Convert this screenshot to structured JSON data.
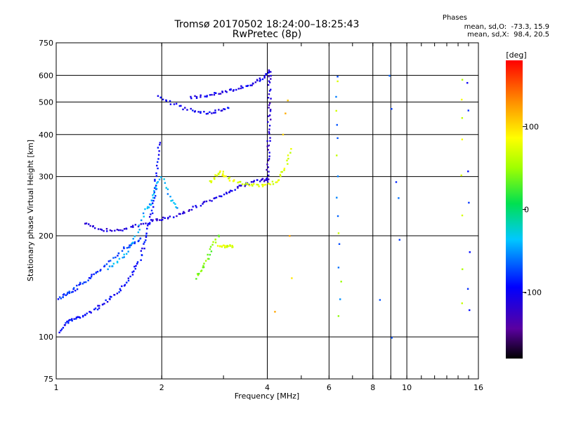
{
  "chart_data": {
    "type": "scatter",
    "title": "Tromsø 20170502 18:24:00–18:25:43",
    "subtitle": "RwPretec (8p)",
    "xlabel": "Frequency [MHz]",
    "ylabel": "Stationary phase Virtual Height [km]",
    "x_scale": "log",
    "y_scale": "log",
    "xlim": [
      1,
      16
    ],
    "ylim": [
      75,
      750
    ],
    "xticks": [
      1,
      2,
      4,
      6,
      8,
      10,
      16
    ],
    "yticks": [
      75,
      100,
      200,
      300,
      400,
      500,
      600,
      750
    ],
    "grid": true,
    "stats": {
      "heading": "Phases",
      "line1": "mean, sd,O:  -73.3, 15.9",
      "line2": "mean, sd,X:  98.4, 20.5"
    },
    "colorbar": {
      "label": "[deg]",
      "ticks": [
        100,
        0,
        -100
      ],
      "range": [
        -180,
        180
      ],
      "colormap": "rainbow"
    },
    "series": [
      {
        "color_deg": -95,
        "points": [
          [
            1.03,
            104
          ],
          [
            1.06,
            110
          ],
          [
            1.1,
            112
          ],
          [
            1.15,
            114
          ],
          [
            1.2,
            116
          ],
          [
            1.28,
            120
          ],
          [
            1.35,
            125
          ],
          [
            1.42,
            130
          ],
          [
            1.5,
            137
          ],
          [
            1.58,
            145
          ],
          [
            1.65,
            155
          ],
          [
            1.72,
            168
          ],
          [
            1.78,
            185
          ],
          [
            1.82,
            205
          ],
          [
            1.86,
            230
          ],
          [
            1.9,
            260
          ],
          [
            1.92,
            290
          ],
          [
            1.94,
            330
          ],
          [
            1.96,
            380
          ]
        ]
      },
      {
        "color_deg": -80,
        "points": [
          [
            1.02,
            130
          ],
          [
            1.05,
            133
          ],
          [
            1.09,
            136
          ],
          [
            1.14,
            140
          ],
          [
            1.2,
            146
          ],
          [
            1.27,
            152
          ],
          [
            1.35,
            160
          ],
          [
            1.45,
            172
          ],
          [
            1.55,
            182
          ],
          [
            1.65,
            190
          ],
          [
            1.75,
            196
          ]
        ]
      },
      {
        "color_deg": -110,
        "points": [
          [
            1.2,
            218
          ],
          [
            1.28,
            212
          ],
          [
            1.38,
            208
          ],
          [
            1.5,
            208
          ],
          [
            1.62,
            212
          ],
          [
            1.75,
            216
          ],
          [
            1.9,
            222
          ],
          [
            2.0,
            225
          ],
          [
            2.15,
            228
          ],
          [
            2.3,
            234
          ],
          [
            2.5,
            244
          ],
          [
            2.7,
            252
          ],
          [
            2.9,
            262
          ],
          [
            3.1,
            270
          ],
          [
            3.3,
            279
          ],
          [
            3.5,
            285
          ],
          [
            3.7,
            290
          ],
          [
            3.9,
            293
          ],
          [
            4.0,
            295
          ]
        ]
      },
      {
        "color_deg": -115,
        "points": [
          [
            4.0,
            290
          ],
          [
            4.02,
            320
          ],
          [
            4.03,
            360
          ],
          [
            4.04,
            400
          ],
          [
            4.05,
            450
          ],
          [
            4.06,
            500
          ],
          [
            4.06,
            560
          ],
          [
            4.06,
            610
          ]
        ]
      },
      {
        "color_deg": -105,
        "points": [
          [
            2.4,
            515
          ],
          [
            2.6,
            520
          ],
          [
            2.8,
            528
          ],
          [
            3.0,
            535
          ],
          [
            3.2,
            545
          ],
          [
            3.4,
            555
          ],
          [
            3.6,
            565
          ],
          [
            3.8,
            580
          ],
          [
            3.95,
            600
          ],
          [
            4.05,
            620
          ]
        ]
      },
      {
        "color_deg": -100,
        "points": [
          [
            1.95,
            520
          ],
          [
            2.1,
            500
          ],
          [
            2.3,
            480
          ],
          [
            2.5,
            470
          ],
          [
            2.7,
            465
          ],
          [
            2.9,
            470
          ],
          [
            3.1,
            480
          ]
        ]
      },
      {
        "color_deg": 40,
        "points": [
          [
            2.5,
            150
          ],
          [
            2.6,
            160
          ],
          [
            2.7,
            172
          ],
          [
            2.8,
            188
          ],
          [
            2.9,
            200
          ]
        ]
      },
      {
        "color_deg": 75,
        "points": [
          [
            2.75,
            290
          ],
          [
            2.85,
            300
          ],
          [
            2.95,
            310
          ],
          [
            3.05,
            300
          ],
          [
            3.2,
            292
          ],
          [
            3.4,
            286
          ],
          [
            3.6,
            283
          ],
          [
            3.85,
            282
          ],
          [
            4.1,
            285
          ],
          [
            4.3,
            295
          ],
          [
            4.5,
            320
          ],
          [
            4.65,
            360
          ]
        ]
      },
      {
        "color_deg": 70,
        "points": [
          [
            2.9,
            185
          ],
          [
            3.0,
            186
          ],
          [
            3.1,
            187
          ],
          [
            3.2,
            186
          ]
        ]
      },
      {
        "color_deg": -45,
        "points": [
          [
            1.4,
            160
          ],
          [
            1.5,
            168
          ],
          [
            1.6,
            180
          ],
          [
            1.7,
            205
          ],
          [
            1.8,
            240
          ],
          [
            1.85,
            250
          ],
          [
            1.9,
            270
          ],
          [
            2.0,
            300
          ],
          [
            2.1,
            260
          ],
          [
            2.2,
            240
          ]
        ]
      },
      {
        "color_deg": -60,
        "points": [
          [
            6.3,
            600
          ],
          [
            6.3,
            520
          ],
          [
            6.3,
            430
          ],
          [
            6.35,
            390
          ],
          [
            6.3,
            300
          ],
          [
            6.35,
            260
          ],
          [
            6.4,
            230
          ],
          [
            6.4,
            190
          ],
          [
            6.4,
            160
          ],
          [
            6.4,
            130
          ]
        ]
      },
      {
        "color_deg": 60,
        "points": [
          [
            6.35,
            580
          ],
          [
            6.3,
            470
          ],
          [
            6.35,
            350
          ],
          [
            6.4,
            205
          ],
          [
            6.45,
            145
          ],
          [
            6.4,
            115
          ]
        ]
      },
      {
        "color_deg": 70,
        "points": [
          [
            14.3,
            580
          ],
          [
            14.3,
            510
          ],
          [
            14.3,
            450
          ],
          [
            14.35,
            390
          ],
          [
            14.3,
            300
          ],
          [
            14.4,
            230
          ],
          [
            14.4,
            160
          ],
          [
            14.45,
            125
          ]
        ]
      },
      {
        "color_deg": -90,
        "points": [
          [
            14.9,
            570
          ],
          [
            14.9,
            470
          ],
          [
            15.0,
            310
          ],
          [
            15.0,
            250
          ],
          [
            15.05,
            180
          ],
          [
            15.05,
            140
          ],
          [
            15.1,
            120
          ]
        ]
      },
      {
        "color_deg": 110,
        "points": [
          [
            4.6,
            510
          ],
          [
            4.5,
            460
          ],
          [
            4.4,
            400
          ],
          [
            4.6,
            200
          ],
          [
            4.2,
            120
          ],
          [
            4.7,
            150
          ]
        ]
      },
      {
        "color_deg": -70,
        "points": [
          [
            8.9,
            600
          ],
          [
            9.0,
            480
          ],
          [
            9.3,
            290
          ],
          [
            9.5,
            260
          ],
          [
            9.6,
            195
          ],
          [
            8.3,
            130
          ],
          [
            9.0,
            100
          ]
        ]
      }
    ]
  }
}
